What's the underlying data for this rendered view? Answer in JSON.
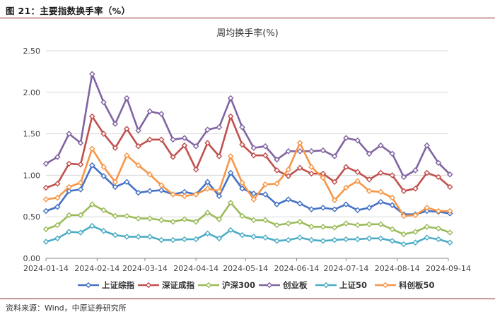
{
  "figure": {
    "caption": "图 21：主要指数换手率（%）",
    "source": "资料来源：Wind，中原证券研究所"
  },
  "chart_data": {
    "type": "line",
    "title": "周均换手率(%)",
    "xlabel": "",
    "ylabel": "",
    "ylim": [
      0,
      2.5
    ],
    "yticks": [
      "0.00",
      "0.50",
      "1.00",
      "1.50",
      "2.00",
      "2.50"
    ],
    "xticks": [
      "2024-01-14",
      "2024-02-14",
      "2024-03-14",
      "2024-04-14",
      "2024-05-14",
      "2024-06-14",
      "2024-07-14",
      "2024-08-14",
      "2024-09-14"
    ],
    "x_start": "2024-01-14",
    "x_step_weeks": 1,
    "grid": "horizontal",
    "legend": "bottom",
    "marker": "diamond",
    "series": [
      {
        "name": "上证综指",
        "color": "#4472c4",
        "values": [
          0.57,
          0.62,
          0.81,
          0.83,
          1.12,
          0.99,
          0.86,
          0.92,
          0.79,
          0.81,
          0.82,
          0.77,
          0.8,
          0.77,
          0.92,
          0.75,
          1.03,
          0.84,
          0.78,
          0.77,
          0.65,
          0.71,
          0.66,
          0.59,
          0.61,
          0.59,
          0.65,
          0.58,
          0.61,
          0.68,
          0.64,
          0.53,
          0.53,
          0.57,
          0.56,
          0.54
        ]
      },
      {
        "name": "深证成指",
        "color": "#c0504d",
        "values": [
          0.85,
          0.9,
          1.14,
          1.13,
          1.71,
          1.5,
          1.33,
          1.56,
          1.35,
          1.43,
          1.43,
          1.22,
          1.36,
          1.07,
          1.39,
          1.23,
          1.71,
          1.37,
          1.24,
          1.24,
          1.06,
          0.99,
          1.09,
          1.02,
          1.02,
          0.92,
          1.1,
          1.04,
          0.95,
          1.03,
          1.0,
          0.81,
          0.84,
          1.03,
          0.98,
          0.86
        ]
      },
      {
        "name": "沪深300",
        "color": "#9bbb59",
        "values": [
          0.35,
          0.4,
          0.52,
          0.52,
          0.65,
          0.58,
          0.51,
          0.51,
          0.48,
          0.48,
          0.46,
          0.44,
          0.47,
          0.44,
          0.55,
          0.47,
          0.67,
          0.51,
          0.46,
          0.46,
          0.4,
          0.42,
          0.44,
          0.38,
          0.38,
          0.37,
          0.42,
          0.4,
          0.41,
          0.41,
          0.35,
          0.29,
          0.32,
          0.38,
          0.36,
          0.31
        ]
      },
      {
        "name": "创业板",
        "color": "#8064a2",
        "values": [
          1.14,
          1.22,
          1.5,
          1.39,
          2.22,
          1.88,
          1.62,
          1.93,
          1.54,
          1.77,
          1.74,
          1.43,
          1.45,
          1.35,
          1.55,
          1.58,
          1.93,
          1.58,
          1.33,
          1.35,
          1.19,
          1.29,
          1.29,
          1.29,
          1.3,
          1.23,
          1.45,
          1.42,
          1.26,
          1.36,
          1.26,
          0.98,
          1.06,
          1.36,
          1.15,
          1.01
        ]
      },
      {
        "name": "上证50",
        "color": "#4bacc6",
        "values": [
          0.2,
          0.24,
          0.32,
          0.31,
          0.39,
          0.33,
          0.28,
          0.26,
          0.26,
          0.26,
          0.22,
          0.22,
          0.23,
          0.23,
          0.3,
          0.24,
          0.34,
          0.28,
          0.26,
          0.25,
          0.21,
          0.22,
          0.25,
          0.22,
          0.21,
          0.22,
          0.23,
          0.23,
          0.24,
          0.24,
          0.21,
          0.17,
          0.19,
          0.25,
          0.23,
          0.19
        ]
      },
      {
        "name": "科创板50",
        "color": "#f79646",
        "values": [
          0.71,
          0.73,
          0.86,
          0.91,
          1.32,
          1.1,
          0.92,
          1.24,
          1.12,
          1.01,
          0.88,
          0.77,
          0.75,
          0.77,
          0.84,
          0.81,
          1.23,
          0.91,
          0.71,
          0.89,
          0.9,
          1.07,
          1.39,
          1.1,
          0.97,
          0.7,
          0.85,
          0.93,
          0.81,
          0.8,
          0.73,
          0.51,
          0.52,
          0.61,
          0.57,
          0.57
        ]
      }
    ]
  }
}
